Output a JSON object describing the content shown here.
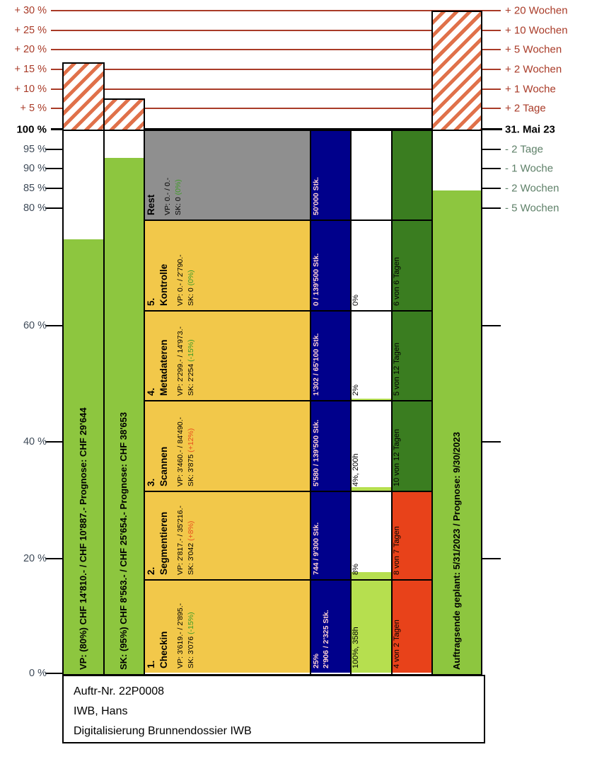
{
  "chart_data": {
    "type": "bar",
    "title": "",
    "y_axis_left": {
      "ticks_above_100": [
        "+ 30 %",
        "+ 25 %",
        "+ 20 %",
        "+ 15 %",
        "+ 10 %",
        "+ 5 %"
      ],
      "base": "100 %",
      "ticks_below": [
        "95 %",
        "90 %",
        "85 %",
        "80 %",
        "60 %",
        "40 %",
        "20 %",
        "0 %"
      ]
    },
    "y_axis_right": {
      "ticks_above": [
        "+ 20 Wochen",
        "+ 10 Wochen",
        "+ 5 Wochen",
        "+ 2 Wochen",
        "+ 1 Woche",
        "+ 2 Tage"
      ],
      "base": "31. Mai 23",
      "ticks_below": [
        "- 2 Tage",
        "- 1 Woche",
        "- 2 Wochen",
        "- 5 Wochen"
      ]
    },
    "cost_bars": [
      {
        "id": "VP",
        "label": "VP: (80%) CHF 14'810.- / CHF 10'887.- Prognose: CHF 29'644",
        "fill_percent": 80,
        "overrun_percent": 17
      },
      {
        "id": "SK",
        "label": "SK: (95%) CHF 8'563.- / CHF 25'654.- Prognose: CHF 38'653",
        "fill_percent": 95,
        "overrun_percent": 8
      }
    ],
    "schedule_bar": {
      "label": "Auftragsende geplant: 5/31/2023 / Prognose: 9/30/2023",
      "fill_percent": 89,
      "overrun_percent": 30
    },
    "phases": [
      {
        "num": "",
        "name": "Rest",
        "vp": "VP: 0.- / 0.-",
        "sk": "SK: 0 ",
        "delta": "(0%)",
        "delta_color": "#3f9b27",
        "stk_pct": "",
        "stk": "50'000 Stk.",
        "pct_label": "",
        "pct_fill_percent": 0,
        "days": "",
        "days_color": "#3a7d20"
      },
      {
        "num": "5.",
        "name": "Kontrolle",
        "vp": "VP: 0.- / 2'790.-",
        "sk": "SK: 0 ",
        "delta": "(0%)",
        "delta_color": "#3f9b27",
        "stk_pct": "",
        "stk": "0 / 139'500 Stk.",
        "pct_label": "0%",
        "pct_fill_percent": 0,
        "days": "6 von 6 Tagen",
        "days_color": "#3a7d20"
      },
      {
        "num": "4.",
        "name": "Metadateren",
        "vp": "VP: 2'299.- / 14'973.-",
        "sk": "SK: 2'254 ",
        "delta": "(-15%)",
        "delta_color": "#3f9b27",
        "stk_pct": "",
        "stk": "1'302 / 65'100 Stk.",
        "pct_label": "2%",
        "pct_fill_percent": 2,
        "days": "5 von 12 Tagen",
        "days_color": "#3a7d20"
      },
      {
        "num": "3.",
        "name": "Scannen",
        "vp": "VP: 3'460.- / 84'490.-",
        "sk": "SK: 3'875 ",
        "delta": "(+12%)",
        "delta_color": "#e8501e",
        "stk_pct": "",
        "stk": "5'580 / 139'500 Stk.",
        "pct_label": "4%, 200h",
        "pct_fill_percent": 4,
        "days": "10 von 12 Tagen",
        "days_color": "#3a7d20"
      },
      {
        "num": "2.",
        "name": "Segmentieren",
        "vp": "VP: 2'817.- / 35'216.-",
        "sk": "SK: 3'042 ",
        "delta": "(+8%)",
        "delta_color": "#e8501e",
        "stk_pct": "",
        "stk": "744 / 9'300 Stk.",
        "pct_label": "8%",
        "pct_fill_percent": 8,
        "days": "8 von 7 Tagen",
        "days_color": "#e8421a"
      },
      {
        "num": "1.",
        "name": "Checkin",
        "vp": "VP: 3'619.- / 2'895.-",
        "sk": "SK: 3'076 ",
        "delta": "(-15%)",
        "delta_color": "#3f9b27",
        "stk_pct": "25%",
        "stk": "2'906 / 2'325 Stk.",
        "pct_label": "100%, 358h",
        "pct_fill_percent": 100,
        "days": "4 von 2 Tagen",
        "days_color": "#e8421a"
      }
    ],
    "colors": {
      "green": "#8dc63f",
      "percent_fill": "#b6df4f",
      "dark_green": "#3a7d20",
      "red": "#e8421a",
      "navy": "#00008b",
      "yellow": "#f2c84a",
      "gray": "#8f8f8f",
      "hatch_stripe": "#e0714a",
      "grid_red": "#a93b28",
      "delta_good": "#3f9b27",
      "delta_bad": "#e8501e",
      "stk_text": "#ffd2d2"
    }
  },
  "footer": {
    "lines": [
      "Auftr-Nr. 22P0008",
      "IWB, Hans",
      "Digitalisierung Brunnendossier IWB"
    ]
  }
}
